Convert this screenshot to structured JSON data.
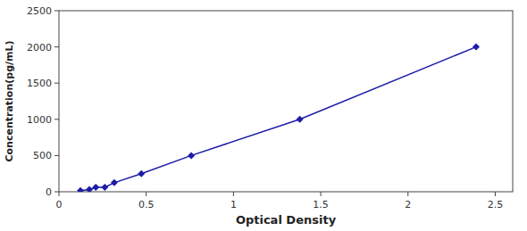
{
  "chart_data": {
    "type": "line",
    "xlabel": "Optical Density",
    "ylabel": "Concentration(pg/mL)",
    "x": [
      0.123,
      0.174,
      0.211,
      0.263,
      0.317,
      0.472,
      0.758,
      1.38,
      2.39
    ],
    "values": [
      15.6,
      31.25,
      62.5,
      62.5,
      125,
      250,
      500,
      1000,
      2000
    ],
    "color": "#1c1ca8",
    "marker": "diamond",
    "xlim": [
      0,
      2.6
    ],
    "ylim": [
      0,
      2500
    ],
    "xticks": [
      0,
      0.5,
      1,
      1.5,
      2,
      2.5
    ],
    "yticks": [
      0,
      500,
      1000,
      1500,
      2000,
      2500
    ],
    "grid": false
  }
}
